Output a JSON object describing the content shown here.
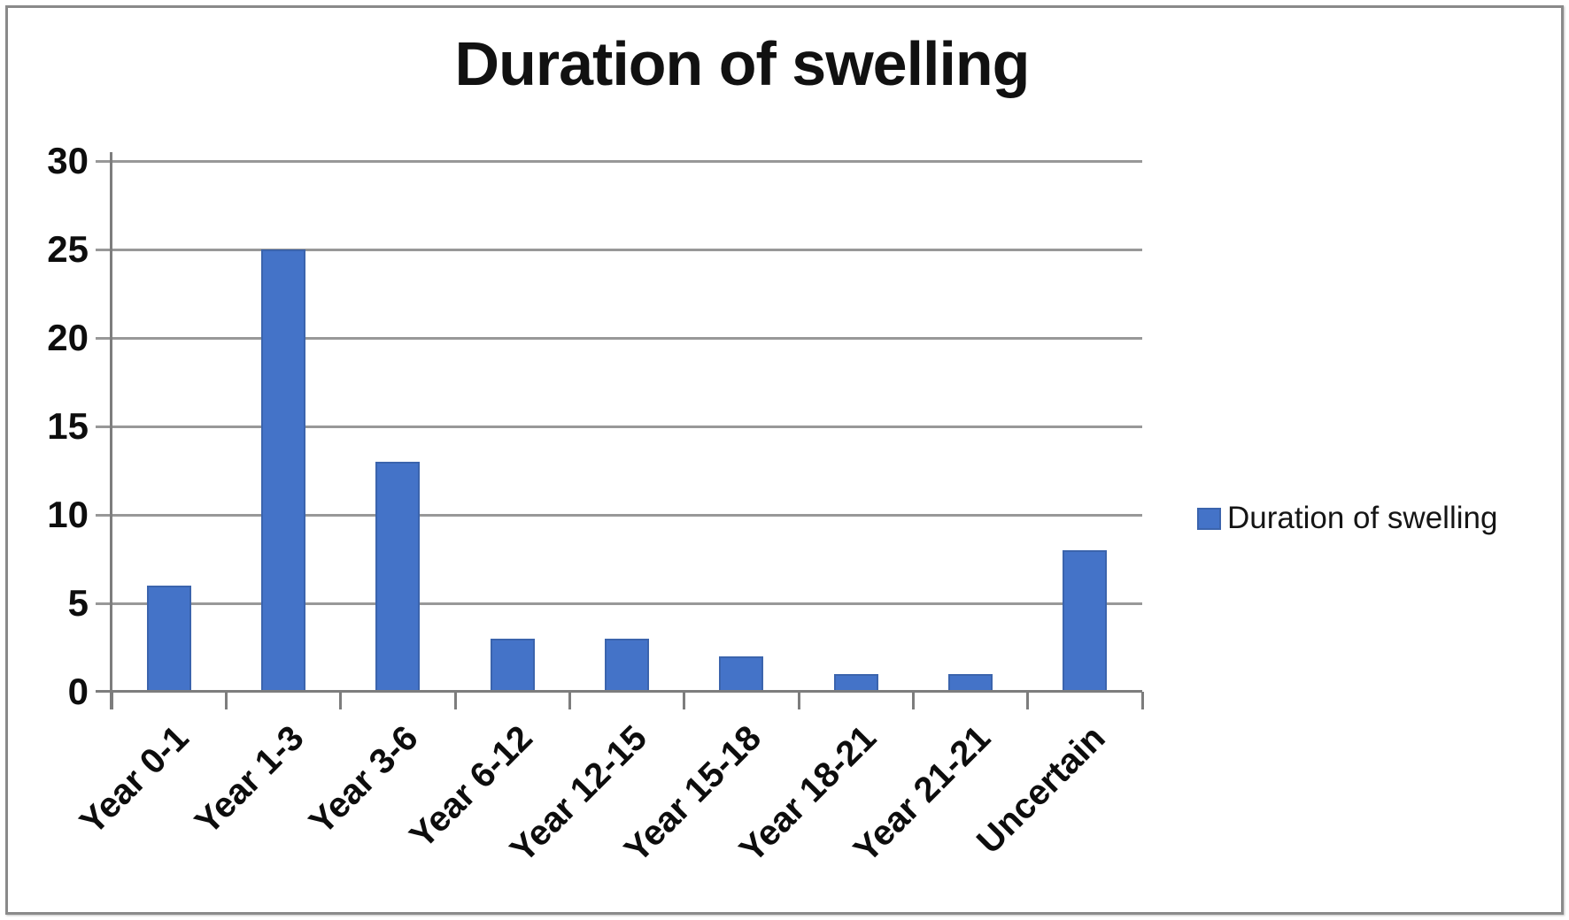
{
  "chart_data": {
    "type": "bar",
    "title": "Duration of swelling",
    "categories": [
      "Year 0-1",
      "Year 1-3",
      "Year 3-6",
      "Year 6-12",
      "Year 12-15",
      "Year 15-18",
      "Year 18-21",
      "Year 21-21",
      "Uncertain"
    ],
    "values": [
      6,
      25,
      13,
      3,
      3,
      2,
      1,
      1,
      8
    ],
    "series_name": "Duration of swelling",
    "xlabel": "",
    "ylabel": "",
    "ylim": [
      0,
      30
    ],
    "yticks": [
      0,
      5,
      10,
      15,
      20,
      25,
      30
    ],
    "grid": true,
    "legend_position": "right",
    "x_label_rotation_deg": -45,
    "bar_color": "#4473c8",
    "bar_border_color": "#3b64ad",
    "gridline_color": "#989898",
    "axis_color": "#7d7d7d",
    "text_color": "#0d0d0d"
  },
  "legend": {
    "label": "Duration of swelling",
    "swatch_color": "#4473c8"
  }
}
